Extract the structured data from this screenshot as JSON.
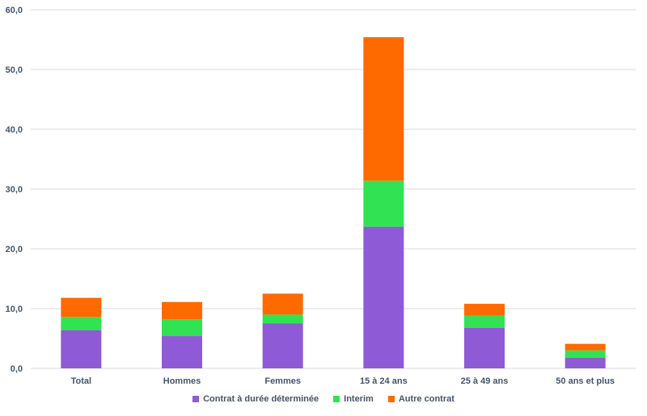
{
  "chart_data": {
    "type": "bar",
    "stacked": true,
    "categories": [
      "Total",
      "Hommes",
      "Femmes",
      "15 à 24 ans",
      "25 à 49 ans",
      "50 ans et plus"
    ],
    "series": [
      {
        "name": "Contrat à durée déterminée",
        "color": "#8e5ad6",
        "values": [
          6.4,
          5.4,
          7.5,
          23.7,
          6.8,
          1.8
        ]
      },
      {
        "name": "Interim",
        "color": "#31e352",
        "values": [
          2.2,
          2.8,
          1.5,
          7.7,
          2.0,
          1.2
        ]
      },
      {
        "name": "Autre contrat",
        "color": "#ff6a00",
        "values": [
          3.2,
          2.9,
          3.5,
          24.0,
          2.0,
          1.1
        ]
      }
    ],
    "ylim": [
      0,
      60
    ],
    "yticks": [
      "0,0",
      "10,0",
      "20,0",
      "30,0",
      "40,0",
      "50,0",
      "60,0"
    ],
    "grid": true,
    "legend_position": "bottom"
  }
}
